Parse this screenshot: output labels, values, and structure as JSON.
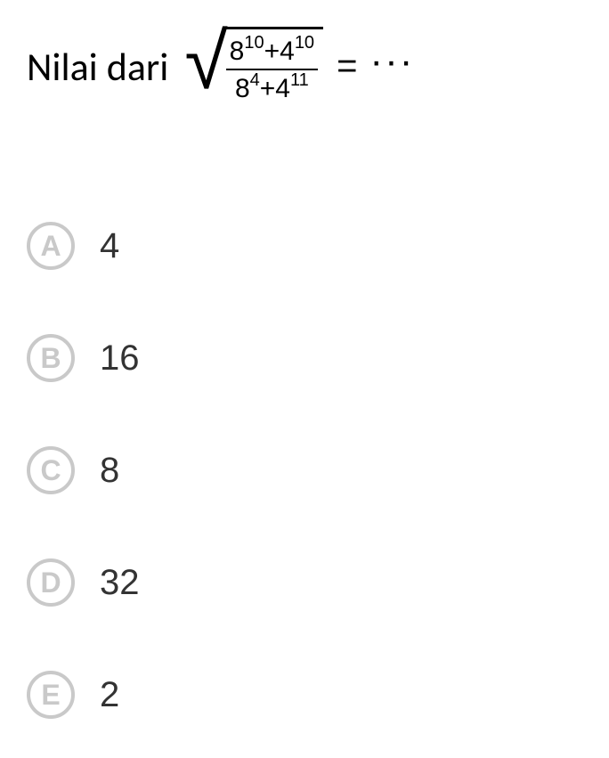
{
  "question": {
    "prompt_text": "Nilai dari",
    "equals": "=",
    "dots": "···",
    "numerator": {
      "base1": "8",
      "exp1": "10",
      "plus": "+",
      "base2": "4",
      "exp2": "10"
    },
    "denominator": {
      "base1": "8",
      "exp1": "4",
      "plus": "+",
      "base2": "4",
      "exp2": "11"
    }
  },
  "options": [
    {
      "letter": "A",
      "value": "4"
    },
    {
      "letter": "B",
      "value": "16"
    },
    {
      "letter": "C",
      "value": "8"
    },
    {
      "letter": "D",
      "value": "32"
    },
    {
      "letter": "E",
      "value": "2"
    }
  ],
  "styling": {
    "option_circle_color": "#c9c9c9",
    "text_color": "#000000",
    "background": "#ffffff"
  }
}
